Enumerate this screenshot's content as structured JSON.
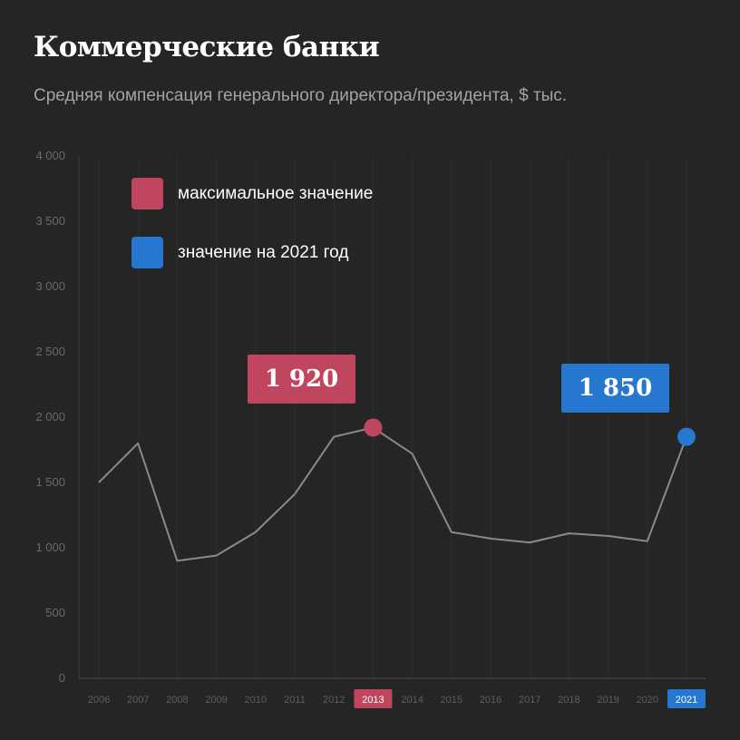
{
  "header": {
    "title": "Коммерческие банки",
    "subtitle": "Средняя компенсация генерального директора/президента, $ тыс."
  },
  "legend": [
    {
      "label": "максимальное значение",
      "color": "#c0465f"
    },
    {
      "label": "значение на 2021 год",
      "color": "#2677d0"
    }
  ],
  "callouts": {
    "max": {
      "text": "1 920",
      "color": "#c0465f"
    },
    "current": {
      "text": "1 850",
      "color": "#2677d0"
    }
  },
  "chart_data": {
    "type": "line",
    "x": [
      "2006",
      "2007",
      "2008",
      "2009",
      "2010",
      "2011",
      "2012",
      "2013",
      "2014",
      "2015",
      "2016",
      "2017",
      "2018",
      "2019",
      "2020",
      "2021"
    ],
    "series": [
      {
        "values": [
          1500,
          1800,
          900,
          940,
          1120,
          1410,
          1850,
          1920,
          1720,
          1120,
          1070,
          1040,
          1110,
          1090,
          1050,
          1850
        ]
      }
    ],
    "y_ticks": [
      "0",
      "500",
      "1 000",
      "1 500",
      "2 000",
      "2 500",
      "3 000",
      "3 500",
      "4 000"
    ],
    "ylim": [
      0,
      4000
    ],
    "grid": "vertical",
    "highlights": {
      "max_year": "2013",
      "current_year": "2021"
    },
    "colors": {
      "line": "#8a8a8a",
      "max": "#c0465f",
      "current": "#2677d0"
    }
  }
}
